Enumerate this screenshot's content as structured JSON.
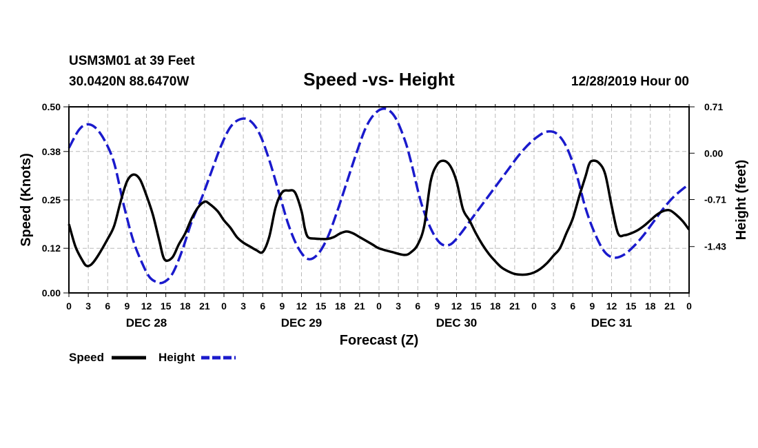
{
  "chart_data": {
    "type": "line",
    "station": "USM3M01 at 39 Feet",
    "location": "30.0420N 88.6470W",
    "title": "Speed -vs- Height",
    "datetime": "12/28/2019 Hour 00",
    "xlabel": "Forecast (Z)",
    "ylabel_left": "Speed (Knots)",
    "ylabel_right": "Height (feet)",
    "x_range_hours": [
      0,
      96
    ],
    "x_tick_step_hours": 3,
    "x_tick_labels": [
      "0",
      "3",
      "6",
      "9",
      "12",
      "15",
      "18",
      "21",
      "0",
      "3",
      "6",
      "9",
      "12",
      "15",
      "18",
      "21",
      "0",
      "3",
      "6",
      "9",
      "12",
      "15",
      "18",
      "21",
      "0",
      "3",
      "6",
      "9",
      "12",
      "15",
      "18",
      "21",
      "0"
    ],
    "day_labels": [
      {
        "label": "DEC 28",
        "hour": 12
      },
      {
        "label": "DEC 29",
        "hour": 36
      },
      {
        "label": "DEC 30",
        "hour": 60
      },
      {
        "label": "DEC 31",
        "hour": 84
      }
    ],
    "left_axis": {
      "range": [
        0,
        0.5
      ],
      "ticks": [
        0.0,
        0.12,
        0.25,
        0.38,
        0.5
      ],
      "labels": [
        "0.00",
        "0.12",
        "0.25",
        "0.38",
        "0.50"
      ]
    },
    "right_axis": {
      "range": [
        -2.14,
        0.71
      ],
      "ticks": [
        -1.43,
        -0.71,
        0.0,
        0.71
      ],
      "labels": [
        "-1.43",
        "-0.71",
        "0.00",
        "0.71"
      ]
    },
    "grid": true,
    "legend_position": "bottom-left",
    "series": [
      {
        "name": "Speed",
        "axis": "left",
        "color": "#000000",
        "style": "solid",
        "x": [
          0,
          1,
          2,
          2.7,
          3.5,
          4.5,
          6,
          7,
          8,
          9,
          10,
          11,
          12,
          13,
          14,
          14.8,
          16,
          17,
          18,
          19,
          20,
          21,
          21.7,
          23,
          24,
          25,
          26,
          27,
          28,
          29,
          30,
          31,
          32,
          33,
          34,
          35,
          36,
          36.5,
          37,
          38,
          39,
          40,
          41,
          42,
          43,
          44,
          45,
          47,
          48,
          50,
          52,
          53,
          54,
          55,
          56,
          57,
          58,
          59,
          60,
          61,
          62,
          63,
          64,
          65,
          66,
          67,
          68,
          69,
          70,
          71,
          72,
          73,
          74,
          75,
          76,
          77,
          78,
          79,
          80,
          80.5,
          81,
          82,
          83,
          84,
          85,
          86,
          87,
          88,
          89,
          90,
          91,
          92,
          93,
          94,
          95,
          96
        ],
        "values": [
          0.185,
          0.125,
          0.09,
          0.073,
          0.077,
          0.1,
          0.145,
          0.18,
          0.245,
          0.3,
          0.318,
          0.305,
          0.262,
          0.21,
          0.14,
          0.09,
          0.095,
          0.13,
          0.16,
          0.2,
          0.23,
          0.245,
          0.24,
          0.22,
          0.195,
          0.175,
          0.15,
          0.135,
          0.125,
          0.115,
          0.11,
          0.15,
          0.23,
          0.27,
          0.275,
          0.27,
          0.22,
          0.175,
          0.15,
          0.146,
          0.145,
          0.145,
          0.15,
          0.16,
          0.165,
          0.16,
          0.15,
          0.13,
          0.12,
          0.11,
          0.102,
          0.11,
          0.13,
          0.18,
          0.3,
          0.345,
          0.355,
          0.342,
          0.3,
          0.225,
          0.195,
          0.16,
          0.13,
          0.105,
          0.085,
          0.068,
          0.058,
          0.051,
          0.049,
          0.05,
          0.055,
          0.065,
          0.08,
          0.1,
          0.12,
          0.16,
          0.2,
          0.26,
          0.315,
          0.345,
          0.355,
          0.35,
          0.32,
          0.235,
          0.16,
          0.155,
          0.16,
          0.168,
          0.18,
          0.195,
          0.21,
          0.22,
          0.222,
          0.21,
          0.193,
          0.17
        ]
      },
      {
        "name": "Height",
        "axis": "right",
        "color": "#1a1acc",
        "style": "dashed",
        "x": [
          0,
          1.5,
          2.7,
          4,
          5.5,
          7,
          8.5,
          10,
          11.5,
          12.5,
          13.5,
          14.6,
          16,
          17.5,
          19,
          20.5,
          22,
          23.5,
          25,
          26.5,
          28,
          29.5,
          31,
          32.5,
          34,
          35.5,
          37,
          38.5,
          40,
          41.5,
          43,
          44.5,
          46,
          47.5,
          49,
          50.5,
          52,
          53,
          54.5,
          56,
          57.5,
          59,
          60.5,
          62,
          63.5,
          65,
          66.5,
          68,
          69.5,
          71,
          72.5,
          74,
          75.5,
          77,
          78.5,
          80,
          81.5,
          83,
          84.5,
          86,
          87.5,
          89,
          90.5,
          92,
          93.5,
          95,
          96
        ],
        "values": [
          0.08,
          0.35,
          0.44,
          0.4,
          0.2,
          -0.15,
          -0.8,
          -1.35,
          -1.72,
          -1.9,
          -1.97,
          -1.98,
          -1.85,
          -1.5,
          -1.05,
          -0.7,
          -0.3,
          0.1,
          0.4,
          0.52,
          0.5,
          0.3,
          -0.1,
          -0.6,
          -1.1,
          -1.45,
          -1.62,
          -1.55,
          -1.3,
          -0.9,
          -0.45,
          0.0,
          0.4,
          0.62,
          0.68,
          0.55,
          0.2,
          -0.15,
          -0.75,
          -1.15,
          -1.38,
          -1.4,
          -1.25,
          -1.05,
          -0.85,
          -0.65,
          -0.45,
          -0.25,
          -0.05,
          0.12,
          0.25,
          0.33,
          0.3,
          0.1,
          -0.3,
          -0.85,
          -1.25,
          -1.52,
          -1.6,
          -1.55,
          -1.42,
          -1.25,
          -1.05,
          -0.85,
          -0.68,
          -0.55,
          -0.48
        ]
      }
    ]
  }
}
